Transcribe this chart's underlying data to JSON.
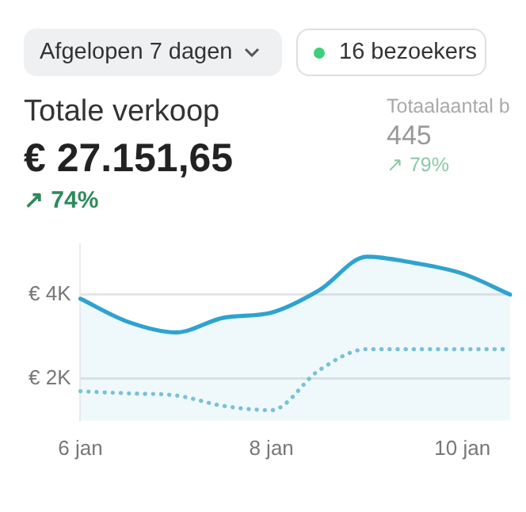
{
  "chart_data": {
    "type": "line",
    "title": "Totale verkoop",
    "subtitle": "€ 27.151,65",
    "annotations": [
      "Afgelopen 7 dagen",
      "16 bezoekers",
      "↗ 74%",
      "Totaalaantal b",
      "445",
      "↗ 79%"
    ],
    "categories": [
      "6 jan",
      null,
      null,
      null,
      "8 jan",
      null,
      null,
      null,
      "10 jan",
      null
    ],
    "series": [
      {
        "type": "area",
        "color": "#2ea3cf",
        "values": [
          3900,
          3350,
          3100,
          3450,
          3570,
          4100,
          4900,
          4750,
          4500,
          4000
        ]
      },
      {
        "color": "#7fc4d6",
        "line_style": "dotted",
        "values": [
          1700,
          1650,
          1600,
          1350,
          1250,
          2200,
          2700,
          2700,
          2700,
          2700
        ]
      }
    ],
    "ylim": [
      1000,
      5200
    ],
    "yticks": [
      {
        "value": 2000,
        "label": "€ 2K"
      },
      {
        "value": 4000,
        "label": "€ 4K"
      }
    ],
    "grid": "y",
    "legend": false,
    "marker": "none"
  }
}
